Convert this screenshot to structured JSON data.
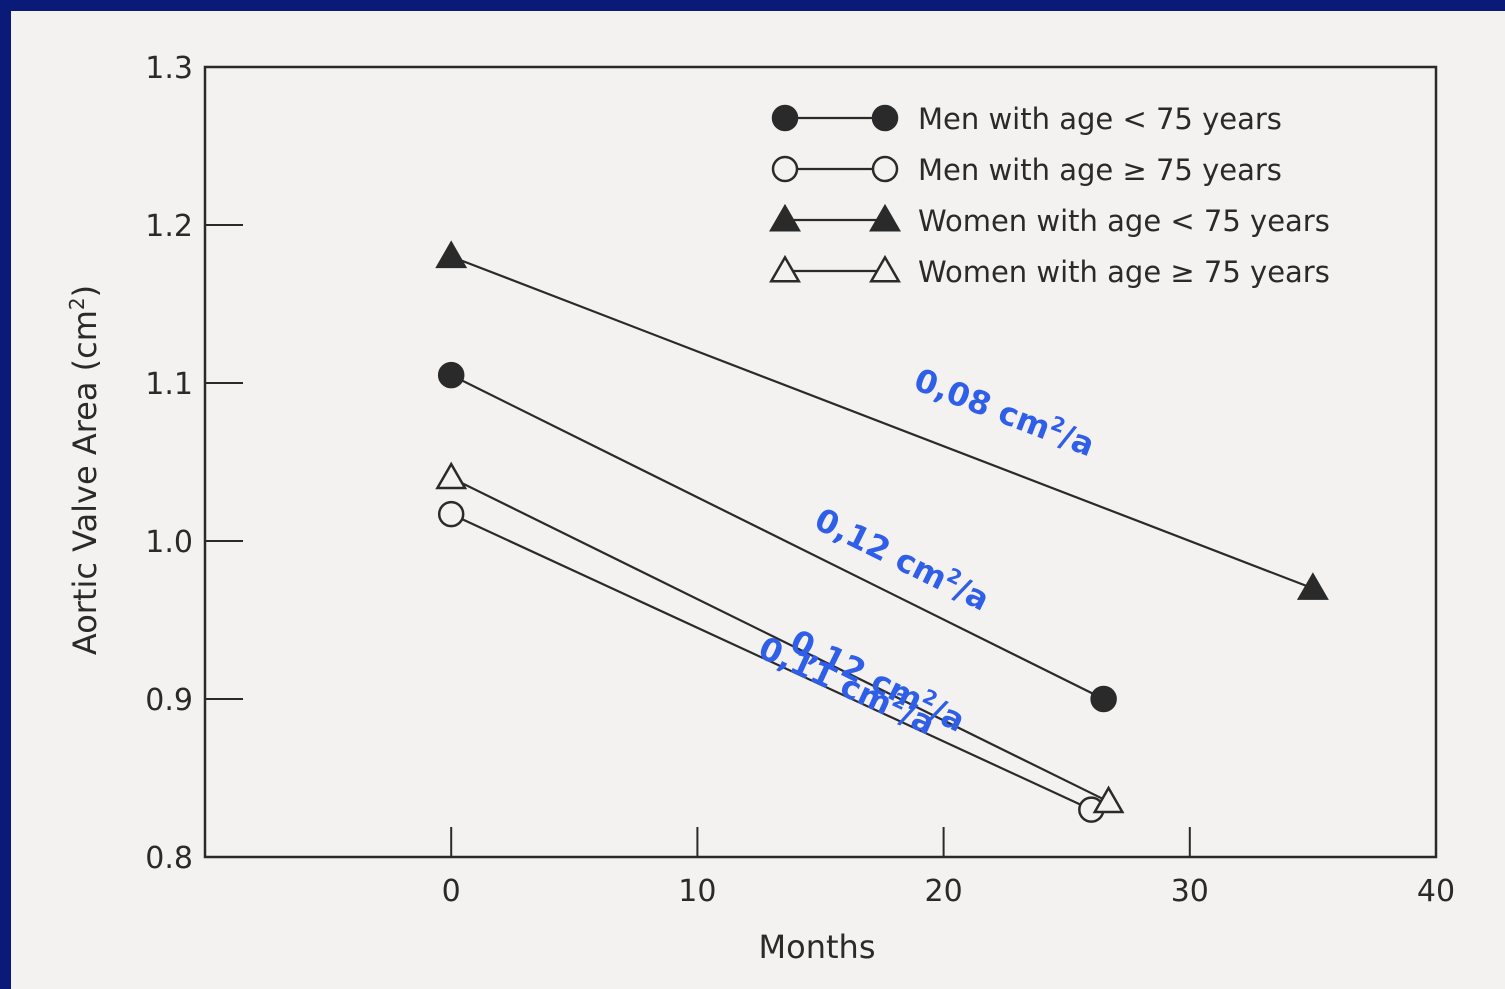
{
  "chart_data": {
    "type": "line",
    "xlabel": "Months",
    "ylabel_main": "Aortic Valve Area (cm",
    "ylabel_sup": "2",
    "ylabel_end": ")",
    "xlim": [
      -10,
      40
    ],
    "ylim": [
      0.8,
      1.3
    ],
    "xticks": [
      0,
      10,
      20,
      30,
      40
    ],
    "yticks": [
      0.8,
      0.9,
      1.0,
      1.1,
      1.2,
      1.3
    ],
    "xtick_labels": [
      "0",
      "10",
      "20",
      "30",
      "40"
    ],
    "ytick_labels": [
      "0.8",
      "0.9",
      "1.0",
      "1.1",
      "1.2",
      "1.3"
    ],
    "legend_position": "top-right",
    "series": [
      {
        "name": "Men with age < 75 years",
        "marker": "filled-circle",
        "x": [
          0,
          26.5
        ],
        "y": [
          1.105,
          0.9
        ]
      },
      {
        "name": "Men with age ≥ 75 years",
        "marker": "open-circle",
        "x": [
          0,
          26
        ],
        "y": [
          1.017,
          0.83
        ]
      },
      {
        "name": "Women with age < 75 years",
        "marker": "filled-triangle",
        "x": [
          0,
          35
        ],
        "y": [
          1.18,
          0.97
        ]
      },
      {
        "name": "Women with age ≥ 75 years",
        "marker": "open-triangle",
        "x": [
          0,
          26.7
        ],
        "y": [
          1.04,
          0.835
        ]
      }
    ],
    "annotations": [
      {
        "text": "0,08 cm",
        "sup": "2",
        "suffix": "/a"
      },
      {
        "text": "0,12 cm",
        "sup": "2",
        "suffix": "/a"
      },
      {
        "text": "0,12 cm",
        "sup": "2",
        "suffix": "/a"
      },
      {
        "text": "0,11 cm",
        "sup": "2",
        "suffix": "/a"
      }
    ]
  },
  "colors": {
    "background": "#0a1a78",
    "paper": "#f4f2f0",
    "ink": "#2a2a2a",
    "annotation": "#2f5ee8"
  }
}
